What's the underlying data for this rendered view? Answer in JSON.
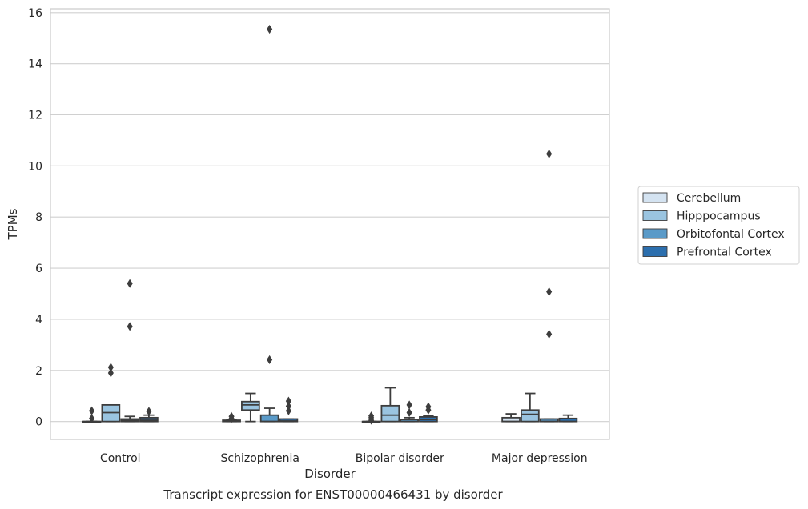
{
  "chart_data": {
    "type": "boxplot",
    "xlabel": "Disorder",
    "ylabel": "TPMs",
    "caption": "Transcript expression for ENST00000466431 by disorder",
    "ylim": [
      -0.7,
      16.15
    ],
    "yticks": [
      0,
      2,
      4,
      6,
      8,
      10,
      12,
      14,
      16
    ],
    "grid": true,
    "legend": {
      "placement": "right-outside"
    },
    "categories": [
      "Control",
      "Schizophrenia",
      "Bipolar disorder",
      "Major depression"
    ],
    "series": [
      {
        "name": "Cerebellum",
        "color": "#d4e3f1",
        "boxes": [
          {
            "whisker_low": 0,
            "q1": 0,
            "median": 0,
            "q3": 0,
            "whisker_high": 0,
            "outliers": [
              0.12,
              0.42
            ]
          },
          {
            "whisker_low": 0,
            "q1": 0,
            "median": 0,
            "q3": 0.05,
            "whisker_high": 0.08,
            "outliers": [
              0.12,
              0.2
            ]
          },
          {
            "whisker_low": 0,
            "q1": 0,
            "median": 0,
            "q3": 0,
            "whisker_high": 0,
            "outliers": [
              0.05,
              0.15,
              0.22
            ]
          },
          {
            "whisker_low": 0,
            "q1": 0,
            "median": 0,
            "q3": 0.15,
            "whisker_high": 0.3,
            "outliers": []
          }
        ]
      },
      {
        "name": "Hipppocampus",
        "color": "#9ac4e0",
        "boxes": [
          {
            "whisker_low": 0,
            "q1": 0,
            "median": 0.35,
            "q3": 0.65,
            "whisker_high": 0.65,
            "outliers": [
              1.9,
              2.12
            ]
          },
          {
            "whisker_low": 0,
            "q1": 0.45,
            "median": 0.65,
            "q3": 0.78,
            "whisker_high": 1.1,
            "outliers": []
          },
          {
            "whisker_low": 0,
            "q1": 0,
            "median": 0.25,
            "q3": 0.62,
            "whisker_high": 1.32,
            "outliers": []
          },
          {
            "whisker_low": 0,
            "q1": 0,
            "median": 0.28,
            "q3": 0.45,
            "whisker_high": 1.1,
            "outliers": []
          }
        ]
      },
      {
        "name": "Orbitofontal Cortex",
        "color": "#5a9ac8",
        "boxes": [
          {
            "whisker_low": 0,
            "q1": 0,
            "median": 0.05,
            "q3": 0.1,
            "whisker_high": 0.2,
            "outliers": [
              3.72,
              5.4
            ]
          },
          {
            "whisker_low": 0,
            "q1": 0,
            "median": 0,
            "q3": 0.25,
            "whisker_high": 0.52,
            "outliers": [
              2.42,
              15.35
            ]
          },
          {
            "whisker_low": 0,
            "q1": 0,
            "median": 0,
            "q3": 0.08,
            "whisker_high": 0.15,
            "outliers": [
              0.35,
              0.65
            ]
          },
          {
            "whisker_low": 0,
            "q1": 0,
            "median": 0,
            "q3": 0.1,
            "whisker_high": 0.1,
            "outliers": [
              3.42,
              5.08,
              10.47
            ]
          }
        ]
      },
      {
        "name": "Prefrontal Cortex",
        "color": "#2c6fae",
        "boxes": [
          {
            "whisker_low": 0,
            "q1": 0,
            "median": 0.05,
            "q3": 0.15,
            "whisker_high": 0.25,
            "outliers": [
              0.4
            ]
          },
          {
            "whisker_low": 0,
            "q1": 0,
            "median": 0.02,
            "q3": 0.1,
            "whisker_high": 0.1,
            "outliers": [
              0.42,
              0.6,
              0.8
            ]
          },
          {
            "whisker_low": 0,
            "q1": 0,
            "median": 0.08,
            "q3": 0.18,
            "whisker_high": 0.22,
            "outliers": [
              0.45,
              0.58
            ]
          },
          {
            "whisker_low": 0,
            "q1": 0,
            "median": 0,
            "q3": 0.12,
            "whisker_high": 0.25,
            "outliers": []
          }
        ]
      }
    ]
  }
}
